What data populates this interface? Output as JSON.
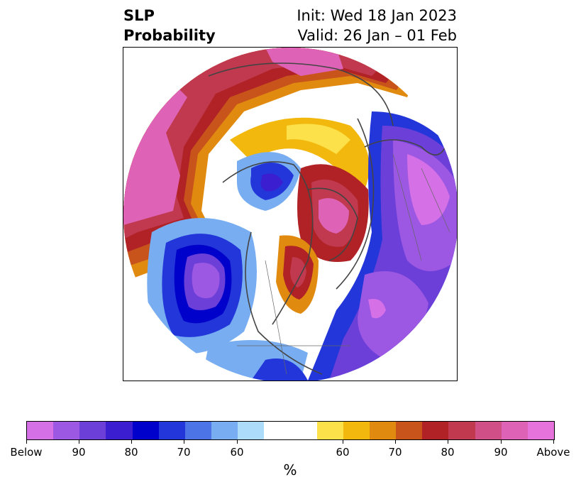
{
  "title": {
    "left_line1": "SLP",
    "left_line2": "Probability",
    "right_line1": "Init: Wed 18 Jan 2023",
    "right_line2": "Valid: 26 Jan – 01 Feb"
  },
  "map": {
    "projection": "north-polar-stereographic",
    "region": "Northern Hemisphere (centered on North America)"
  },
  "colorbar": {
    "label": "%",
    "segments": [
      {
        "class": "below",
        "color": "#d570e6"
      },
      {
        "class": "below",
        "color": "#9c57e3"
      },
      {
        "class": "below",
        "color": "#6c3fd8"
      },
      {
        "class": "below",
        "color": "#3b1ed0"
      },
      {
        "class": "below",
        "color": "#0002cb"
      },
      {
        "class": "below",
        "color": "#2236d9"
      },
      {
        "class": "below",
        "color": "#4d74e6"
      },
      {
        "class": "below",
        "color": "#78aef1"
      },
      {
        "class": "below",
        "color": "#addcfb"
      },
      {
        "class": "neutral",
        "color": "#ffffff"
      },
      {
        "class": "above",
        "color": "#fde14a"
      },
      {
        "class": "above",
        "color": "#f2b80e"
      },
      {
        "class": "above",
        "color": "#e08a10"
      },
      {
        "class": "above",
        "color": "#c8541c"
      },
      {
        "class": "above",
        "color": "#b02226"
      },
      {
        "class": "above",
        "color": "#c0394e"
      },
      {
        "class": "above",
        "color": "#cf4f86"
      },
      {
        "class": "above",
        "color": "#de63b6"
      },
      {
        "class": "above",
        "color": "#e673dc"
      }
    ],
    "ticks": [
      "Below",
      "90",
      "80",
      "70",
      "60",
      "60",
      "70",
      "80",
      "90",
      "Above"
    ]
  }
}
